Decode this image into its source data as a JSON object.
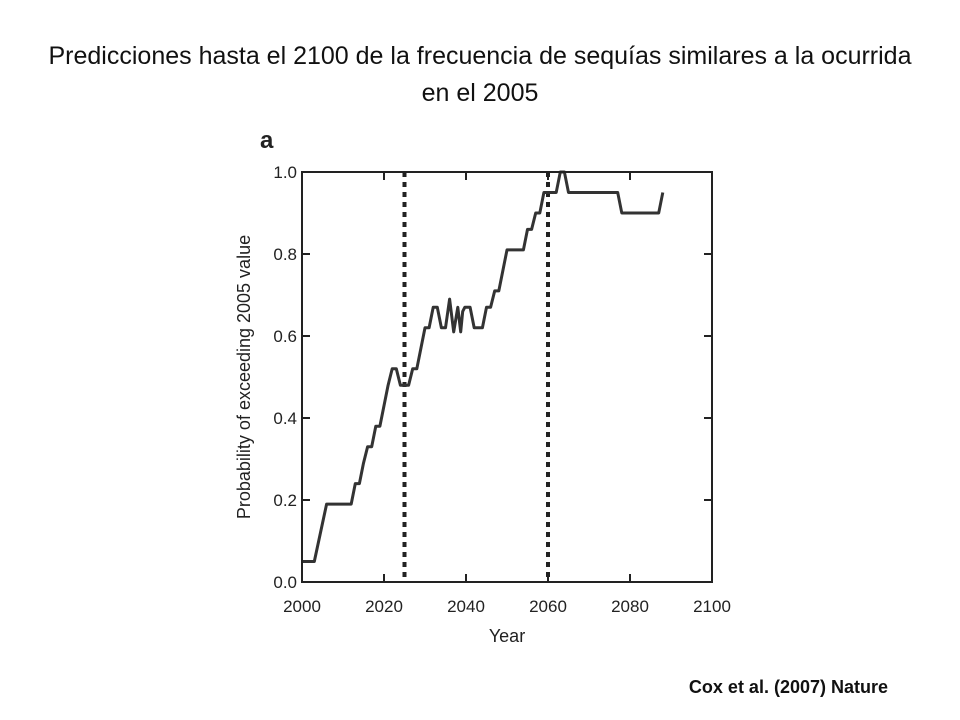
{
  "slide": {
    "title": "Predicciones hasta el 2100 de la frecuencia de sequías similares a la ocurrida en el 2005",
    "citation": "Cox et al. (2007) Nature"
  },
  "chart_data": {
    "type": "line",
    "panel_label": "a",
    "xlabel": "Year",
    "ylabel": "Probability of exceeding 2005 value",
    "xlim": [
      2000,
      2100
    ],
    "ylim": [
      0,
      1
    ],
    "x_ticks": [
      2000,
      2020,
      2040,
      2060,
      2080,
      2100
    ],
    "y_ticks": [
      0.0,
      0.2,
      0.4,
      0.6,
      0.8,
      1.0
    ],
    "y_tick_labels": [
      "0.0",
      "0.2",
      "0.4",
      "0.6",
      "0.8",
      "1.0"
    ],
    "vertical_lines": [
      2025,
      2060
    ],
    "line_color": "#333333",
    "series": [
      {
        "x": [
          2000,
          2003,
          2006,
          2012,
          2013,
          2014,
          2015,
          2016,
          2017,
          2018,
          2019,
          2020,
          2021,
          2022,
          2023,
          2024,
          2025,
          2026,
          2027,
          2028,
          2029,
          2030,
          2031,
          2032,
          2033,
          2034,
          2035,
          2036,
          2037,
          2038,
          2038.7,
          2039.2,
          2039.7,
          2040.5,
          2041,
          2042,
          2043,
          2044,
          2045,
          2046,
          2047,
          2048,
          2049,
          2050,
          2051,
          2052,
          2053,
          2054,
          2055,
          2056,
          2057,
          2058,
          2059,
          2060,
          2061,
          2062,
          2063,
          2064,
          2065,
          2066,
          2067,
          2068,
          2069,
          2070,
          2072,
          2074,
          2076,
          2077,
          2078,
          2080,
          2082,
          2084,
          2086,
          2087,
          2088
        ],
        "y": [
          0.05,
          0.05,
          0.19,
          0.19,
          0.24,
          0.24,
          0.29,
          0.33,
          0.33,
          0.38,
          0.38,
          0.43,
          0.48,
          0.52,
          0.52,
          0.48,
          0.48,
          0.48,
          0.52,
          0.52,
          0.57,
          0.62,
          0.62,
          0.67,
          0.67,
          0.62,
          0.62,
          0.69,
          0.61,
          0.67,
          0.61,
          0.66,
          0.67,
          0.67,
          0.67,
          0.62,
          0.62,
          0.62,
          0.67,
          0.67,
          0.71,
          0.71,
          0.76,
          0.81,
          0.81,
          0.81,
          0.81,
          0.81,
          0.86,
          0.86,
          0.9,
          0.9,
          0.95,
          0.95,
          0.95,
          0.95,
          1.0,
          1.0,
          0.95,
          0.95,
          0.95,
          0.95,
          0.95,
          0.95,
          0.95,
          0.95,
          0.95,
          0.95,
          0.9,
          0.9,
          0.9,
          0.9,
          0.9,
          0.9,
          0.95
        ]
      }
    ]
  }
}
